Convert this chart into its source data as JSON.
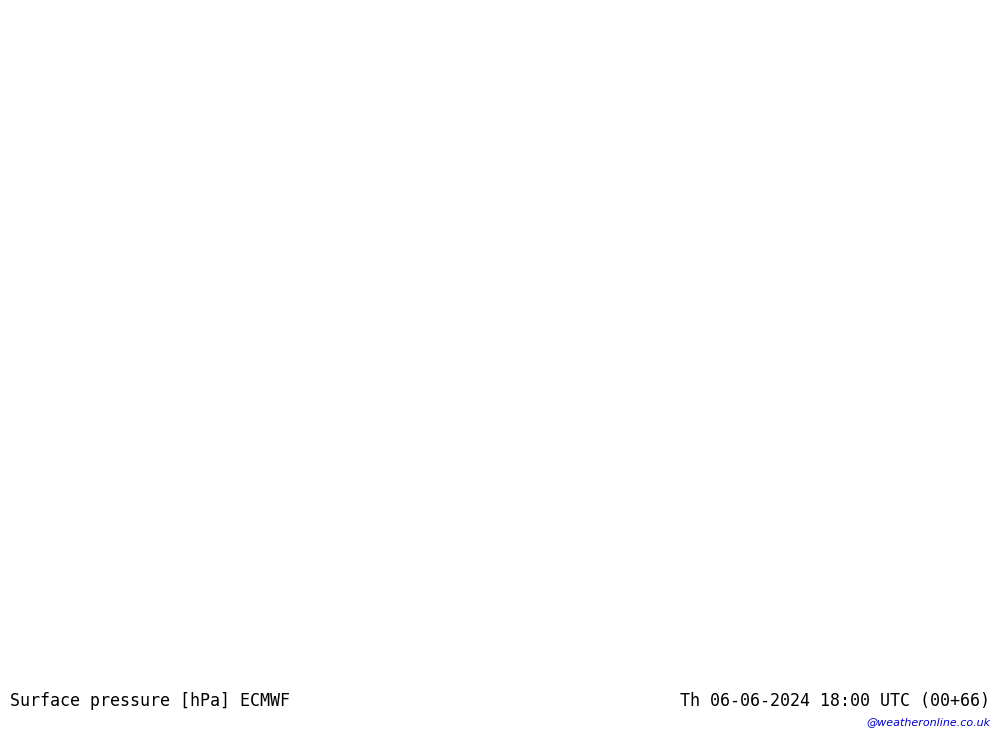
{
  "title_left": "Surface pressure [hPa] ECMWF",
  "title_right": "Th 06-06-2024 18:00 UTC (00+66)",
  "watermark": "@weatheronline.co.uk",
  "bg_color": "#e8e8e8",
  "land_color": "#b0e0a0",
  "land_border_color": "#999999",
  "sea_color": "#e0e0e8",
  "blue_isobar_color": "#0000cc",
  "black_isobar_color": "#000000",
  "red_isobar_color": "#cc0000",
  "font_size_labels": 9,
  "font_size_title": 12,
  "lon_min": -18,
  "lon_max": 18,
  "lat_min": 45,
  "lat_max": 66
}
